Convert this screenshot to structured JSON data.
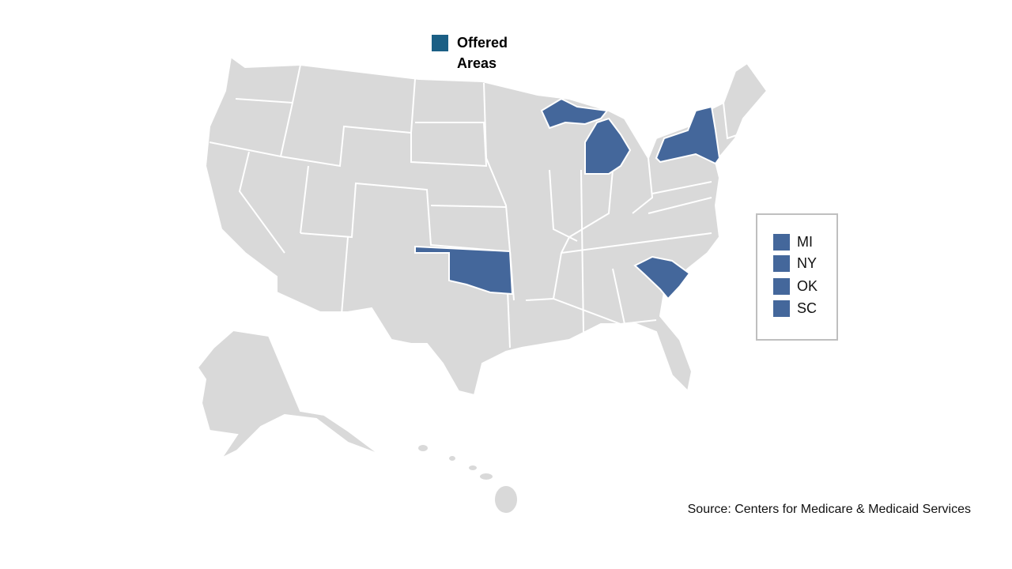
{
  "legend": {
    "label": "Offered Areas",
    "color": "#1b5f85"
  },
  "highlight_color": "#44679b",
  "base_color": "#d9d9d9",
  "states_offered": [
    {
      "code": "MI"
    },
    {
      "code": "NY"
    },
    {
      "code": "OK"
    },
    {
      "code": "SC"
    }
  ],
  "source": "Source: Centers for Medicare & Medicaid Services"
}
